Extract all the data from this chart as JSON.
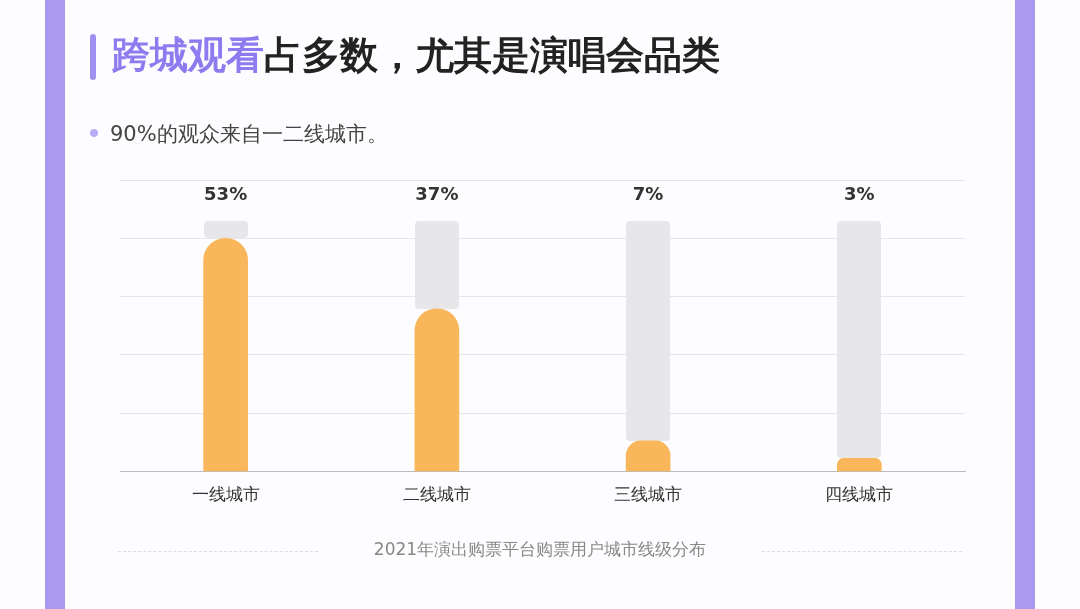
{
  "chart_data": {
    "type": "bar",
    "title": "跨城观看占多数，尤其是演唱会品类",
    "subtitle": "90%的观众来自一二线城市。",
    "categories": [
      "一线城市",
      "二线城市",
      "三线城市",
      "四线城市"
    ],
    "values": [
      53,
      37,
      7,
      3
    ],
    "color": "#f9b65a",
    "value_labels": [
      "53%",
      "37%",
      "7%",
      "3%"
    ],
    "grid": "y",
    "tick_labels": "x",
    "annotations": [
      "2021年演出购票平台购票用户城市线级分布"
    ]
  }
}
